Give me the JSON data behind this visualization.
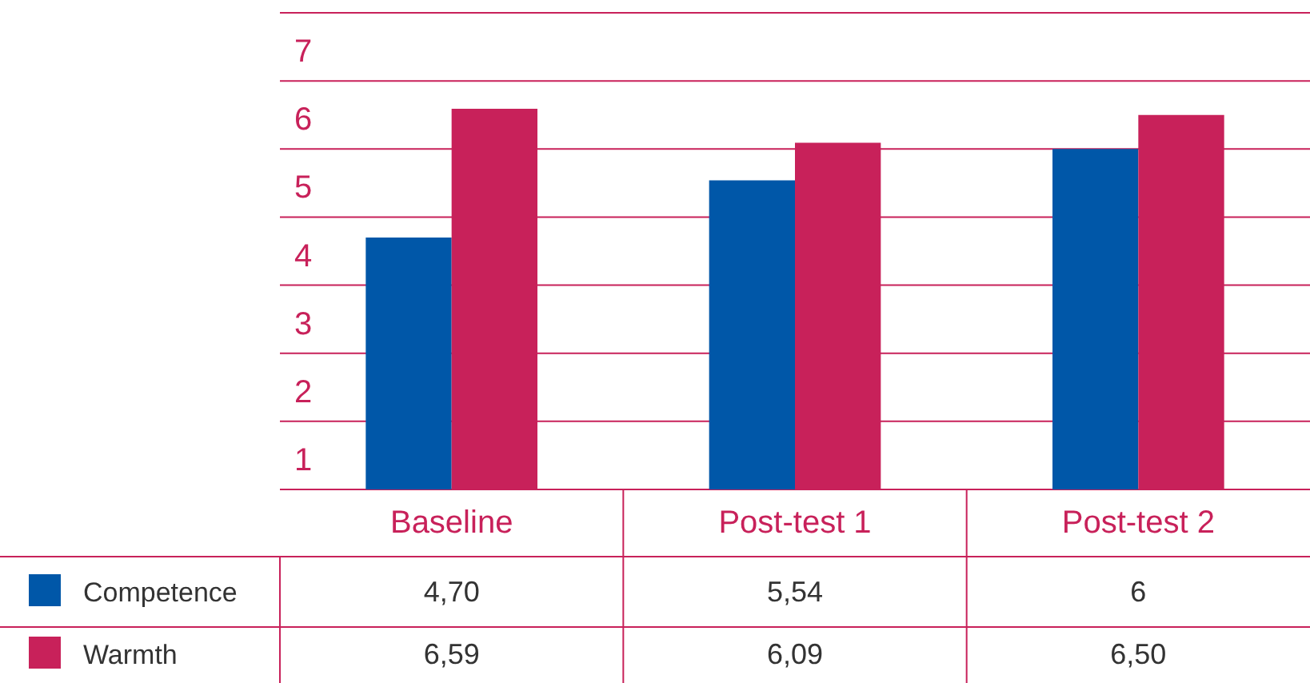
{
  "chart_data": {
    "type": "bar",
    "categories": [
      "Baseline",
      "Post-test 1",
      "Post-test 2"
    ],
    "ylim": [
      1,
      8
    ],
    "yticks": [
      1,
      2,
      3,
      4,
      5,
      6,
      7,
      {
        "value": 8,
        "label": null
      }
    ],
    "grid": "y",
    "legend": "bottom left",
    "series": [
      {
        "name": "Competence",
        "color": "#0057a8",
        "values": [
          4.7,
          5.54,
          6
        ],
        "value_labels": [
          "4,70",
          "5,54",
          "6"
        ]
      },
      {
        "name": "Warmth",
        "color": "#c8215a",
        "values": [
          6.59,
          6.09,
          6.5
        ],
        "value_labels": [
          "6,59",
          "6,09",
          "6,50"
        ]
      }
    ]
  }
}
